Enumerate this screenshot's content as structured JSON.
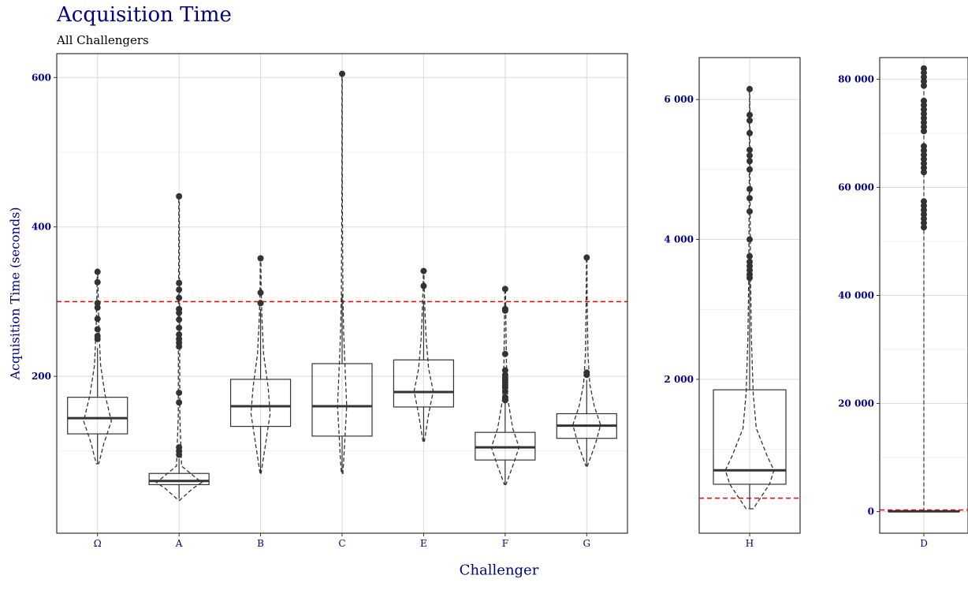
{
  "title": "Acquisition Time",
  "subtitle": "All Challengers",
  "colors": {
    "title": "#00008b",
    "reference_line": "#ff0000",
    "box": "#333333",
    "grid": "#d9d9d9"
  },
  "chart_data": {
    "type": "box",
    "title": "Acquisition Time",
    "subtitle": "All Challengers",
    "xlabel": "Challenger",
    "ylabel": "Acquisition Time (seconds)",
    "grid": true,
    "overlay": "violin outline (dashed) per group",
    "reference_line": {
      "value": 300,
      "style": "dashed",
      "color": "#ff0000"
    },
    "panels": [
      {
        "categories": [
          "Ω",
          "A",
          "B",
          "C",
          "E",
          "F",
          "G"
        ],
        "ylim": [
          -10,
          632
        ],
        "yticks": [
          200,
          400,
          600
        ],
        "ytick_labels": [
          "200",
          "400",
          "600"
        ],
        "boxes": [
          {
            "name": "Ω",
            "whisker_low": 83,
            "q1": 123,
            "median": 144,
            "q3": 172,
            "whisker_high": 238,
            "outliers": [
              340,
              326,
              298,
              292,
              277,
              263,
              254,
              250
            ],
            "violin": [
              [
                83,
                0.05
              ],
              [
                110,
                0.25
              ],
              [
                140,
                0.55
              ],
              [
                175,
                0.3
              ],
              [
                215,
                0.12
              ],
              [
                260,
                0.06
              ],
              [
                300,
                0.03
              ],
              [
                340,
                0.01
              ]
            ]
          },
          {
            "name": "A",
            "whisker_low": 36,
            "q1": 55,
            "median": 60,
            "q3": 70,
            "whisker_high": 90,
            "outliers": [
              441,
              325,
              316,
              305,
              290,
              285,
              276,
              265,
              256,
              250,
              245,
              240,
              178,
              165,
              105,
              100,
              95
            ],
            "violin": [
              [
                34,
                0.02
              ],
              [
                50,
                0.55
              ],
              [
                58,
                0.9
              ],
              [
                66,
                0.6
              ],
              [
                80,
                0.1
              ],
              [
                150,
                0.03
              ],
              [
                250,
                0.025
              ],
              [
                350,
                0.015
              ],
              [
                441,
                0.01
              ]
            ]
          },
          {
            "name": "B",
            "whisker_low": 70,
            "q1": 133,
            "median": 160,
            "q3": 196,
            "whisker_high": 290,
            "outliers": [
              358,
              312,
              298
            ],
            "violin": [
              [
                70,
                0.02
              ],
              [
                110,
                0.2
              ],
              [
                150,
                0.38
              ],
              [
                185,
                0.3
              ],
              [
                230,
                0.12
              ],
              [
                280,
                0.05
              ],
              [
                320,
                0.02
              ],
              [
                358,
                0.01
              ]
            ]
          },
          {
            "name": "C",
            "whisker_low": 70,
            "q1": 120,
            "median": 160,
            "q3": 217,
            "whisker_high": 310,
            "outliers": [
              605
            ],
            "violin": [
              [
                70,
                0.03
              ],
              [
                110,
                0.1
              ],
              [
                160,
                0.18
              ],
              [
                210,
                0.12
              ],
              [
                260,
                0.06
              ],
              [
                310,
                0.03
              ],
              [
                450,
                0.01
              ],
              [
                605,
                0.005
              ]
            ]
          },
          {
            "name": "E",
            "whisker_low": 113,
            "q1": 159,
            "median": 179,
            "q3": 222,
            "whisker_high": 300,
            "outliers": [
              341,
              321
            ],
            "violin": [
              [
                113,
                0.03
              ],
              [
                150,
                0.2
              ],
              [
                180,
                0.38
              ],
              [
                210,
                0.2
              ],
              [
                250,
                0.1
              ],
              [
                290,
                0.05
              ],
              [
                320,
                0.02
              ],
              [
                341,
                0.01
              ]
            ]
          },
          {
            "name": "F",
            "whisker_low": 55,
            "q1": 88,
            "median": 105,
            "q3": 125,
            "whisker_high": 165,
            "outliers": [
              317,
              290,
              288,
              230,
              208,
              202,
              198,
              195,
              192,
              188,
              185,
              180,
              172,
              168
            ],
            "violin": [
              [
                55,
                0.03
              ],
              [
                80,
                0.3
              ],
              [
                105,
                0.55
              ],
              [
                130,
                0.3
              ],
              [
                170,
                0.1
              ],
              [
                220,
                0.05
              ],
              [
                270,
                0.03
              ],
              [
                317,
                0.015
              ]
            ]
          },
          {
            "name": "G",
            "whisker_low": 80,
            "q1": 117,
            "median": 134,
            "q3": 150,
            "whisker_high": 195,
            "outliers": [
              359,
              205,
              202
            ],
            "violin": [
              [
                80,
                0.03
              ],
              [
                110,
                0.35
              ],
              [
                135,
                0.55
              ],
              [
                160,
                0.3
              ],
              [
                190,
                0.12
              ],
              [
                230,
                0.05
              ],
              [
                300,
                0.02
              ],
              [
                359,
                0.01
              ]
            ]
          }
        ]
      },
      {
        "categories": [
          "H"
        ],
        "ylim": [
          -200,
          6600
        ],
        "yticks": [
          2000,
          4000,
          6000
        ],
        "ytick_labels": [
          "2 000",
          "4 000",
          "6 000"
        ],
        "boxes": [
          {
            "name": "H",
            "whisker_low": 150,
            "q1": 500,
            "median": 700,
            "q3": 1850,
            "whisker_high": 3400,
            "outliers": [
              6150,
              5780,
              5700,
              5520,
              5280,
              5200,
              5120,
              5000,
              4720,
              4590,
              4400,
              4000,
              3760,
              3680,
              3620,
              3560,
              3500,
              3450
            ],
            "violin": [
              [
                150,
                0.08
              ],
              [
                500,
                0.45
              ],
              [
                700,
                0.55
              ],
              [
                900,
                0.4
              ],
              [
                1300,
                0.15
              ],
              [
                1800,
                0.08
              ],
              [
                2600,
                0.04
              ],
              [
                3500,
                0.02
              ],
              [
                4500,
                0.01
              ],
              [
                6150,
                0.004
              ]
            ]
          }
        ]
      },
      {
        "categories": [
          "D"
        ],
        "ylim": [
          -4000,
          84000
        ],
        "yticks": [
          0,
          20000,
          40000,
          60000,
          80000
        ],
        "ytick_labels": [
          "0",
          "20 000",
          "40 000",
          "60 000",
          "80 000"
        ],
        "boxes": [
          {
            "name": "D",
            "whisker_low": 0,
            "q1": 20,
            "median": 50,
            "q3": 120,
            "whisker_high": 300,
            "outliers": [
              82000,
              81200,
              80400,
              79600,
              78800,
              76000,
              75200,
              74400,
              73600,
              72800,
              72000,
              71200,
              70400,
              67600,
              66800,
              66000,
              65200,
              64400,
              63600,
              62800,
              57400,
              56600,
              55800,
              55000,
              54200,
              53400,
              52600
            ],
            "violin": []
          }
        ]
      }
    ]
  }
}
